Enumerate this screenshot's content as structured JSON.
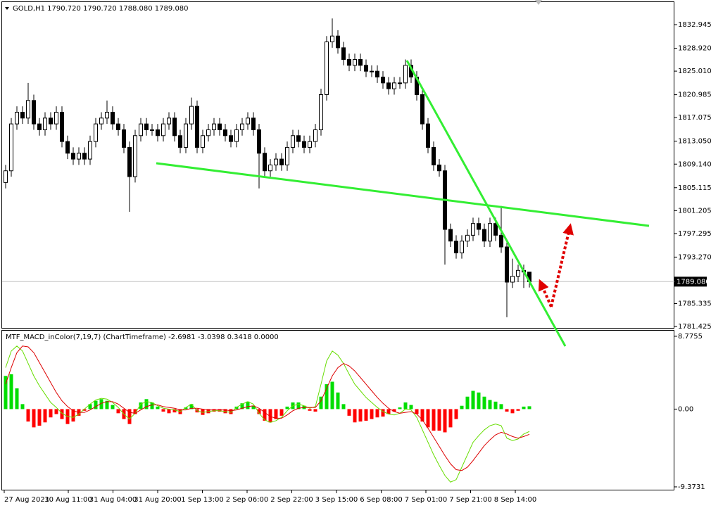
{
  "chart_data": [
    {
      "type": "candlestick",
      "title": "GOLD,H1  1790.720 1790.720 1788.080 1789.080",
      "categories": [
        "27 Aug 2021",
        "30 Aug 11:00",
        "31 Aug 04:00",
        "31 Aug 20:00",
        "1 Sep 13:00",
        "2 Sep 06:00",
        "2 Sep 22:00",
        "3 Sep 15:00",
        "6 Sep 08:00",
        "7 Sep 01:00",
        "7 Sep 21:00",
        "8 Sep 14:00"
      ],
      "open": [
        1806,
        1808,
        1816,
        1818,
        1817,
        1820,
        1816,
        1815,
        1817,
        1816,
        1818,
        1813,
        1811,
        1810,
        1811,
        1810,
        1813,
        1816,
        1817,
        1818,
        1816,
        1815,
        1812,
        1807,
        1814,
        1816,
        1815,
        1815,
        1814,
        1816,
        1817,
        1814,
        1812,
        1816,
        1819,
        1812,
        1814,
        1815,
        1816,
        1815,
        1814,
        1813,
        1815,
        1816,
        1817,
        1815,
        1811,
        1808,
        1809,
        1810,
        1809,
        1812,
        1814,
        1813,
        1812,
        1813,
        1815,
        1821,
        1830,
        1831,
        1829,
        1827,
        1826,
        1827,
        1826,
        1825,
        1825,
        1824,
        1823,
        1822,
        1823,
        1823,
        1826,
        1824,
        1821,
        1816,
        1812,
        1809,
        1808,
        1798,
        1796,
        1794,
        1796,
        1797,
        1799,
        1798,
        1796,
        1799,
        1797,
        1795,
        1789,
        1790,
        1791,
        1790.72
      ],
      "high": [
        1809,
        1817,
        1819,
        1819,
        1823,
        1821,
        1817,
        1818,
        1818,
        1819,
        1819,
        1814,
        1812,
        1812,
        1812,
        1814,
        1817,
        1818,
        1820,
        1819,
        1817,
        1816,
        1813,
        1815,
        1817,
        1817,
        1816,
        1816,
        1817,
        1818,
        1818,
        1815,
        1817,
        1820.5,
        1820,
        1815,
        1816,
        1817,
        1817,
        1816,
        1815,
        1816,
        1817,
        1818,
        1818,
        1816,
        1812,
        1810,
        1811,
        1811,
        1813,
        1815,
        1815,
        1814,
        1814,
        1816,
        1822,
        1831,
        1834,
        1832,
        1830,
        1828,
        1828,
        1828,
        1827,
        1826,
        1826,
        1825,
        1824,
        1824,
        1824,
        1827,
        1827,
        1825,
        1822,
        1817,
        1813,
        1810,
        1809,
        1799,
        1797,
        1797,
        1798,
        1800,
        1800,
        1799,
        1800,
        1800,
        1802,
        1796,
        1793,
        1792,
        1792,
        1790.72
      ],
      "low": [
        1805,
        1807,
        1815,
        1816,
        1816,
        1815,
        1814,
        1814,
        1815,
        1815,
        1812,
        1810,
        1809,
        1809,
        1809,
        1809,
        1812,
        1815,
        1816,
        1815,
        1814,
        1811,
        1801,
        1806,
        1813,
        1814,
        1814,
        1813,
        1813,
        1815,
        1813,
        1811,
        1811,
        1815,
        1811,
        1811,
        1813,
        1814,
        1814,
        1813,
        1812,
        1812,
        1814,
        1815,
        1814,
        1805,
        1807,
        1807,
        1808,
        1808,
        1808,
        1811,
        1812,
        1811,
        1811,
        1812,
        1814,
        1820,
        1829,
        1828,
        1826,
        1825,
        1825,
        1825,
        1824,
        1824,
        1823,
        1822,
        1821,
        1821,
        1822,
        1822,
        1823,
        1820,
        1815,
        1811,
        1808,
        1807,
        1792,
        1795,
        1793,
        1793,
        1795,
        1796,
        1797,
        1795,
        1795,
        1796,
        1794,
        1783,
        1788,
        1789,
        1788,
        1788.08
      ],
      "close": [
        1808,
        1816,
        1818,
        1817,
        1820,
        1816,
        1815,
        1817,
        1816,
        1818,
        1813,
        1811,
        1810,
        1811,
        1810,
        1813,
        1816,
        1817,
        1818,
        1816,
        1815,
        1812,
        1807,
        1814,
        1816,
        1815,
        1815,
        1814,
        1816,
        1817,
        1814,
        1812,
        1816,
        1819,
        1812,
        1814,
        1815,
        1816,
        1815,
        1814,
        1813,
        1815,
        1816,
        1817,
        1815,
        1811,
        1808,
        1809,
        1810,
        1809,
        1812,
        1814,
        1813,
        1812,
        1813,
        1815,
        1821,
        1830,
        1831,
        1829,
        1827,
        1826,
        1827,
        1826,
        1825,
        1825,
        1824,
        1823,
        1822,
        1823,
        1823,
        1826,
        1824,
        1821,
        1816,
        1812,
        1809,
        1808,
        1798,
        1796,
        1794,
        1796,
        1797,
        1799,
        1798,
        1796,
        1799,
        1797,
        1795,
        1789,
        1790,
        1791,
        1790.72,
        1789.08
      ],
      "up_color": "#ffffff",
      "down_color": "#000000",
      "ylim": [
        1781.07,
        1837.15
      ],
      "yticks": [
        1832.945,
        {
          "value": 1828.92,
          "label": "1828.920"
        },
        {
          "value": 1825.01,
          "label": "1825.010"
        },
        1820.985,
        1817.075,
        {
          "value": 1813.05,
          "label": "1813.050"
        },
        {
          "value": 1809.14,
          "label": "1809.140"
        },
        1805.115,
        1801.205,
        1797.295,
        {
          "value": 1793.27,
          "label": "1793.270"
        },
        1785.335,
        1781.425
      ],
      "current_price": {
        "value": 1789.08,
        "label": "1789.080"
      }
    },
    {
      "type": "macd",
      "title": "MTF_MACD_inColor(7,19,7) (ChartTimeframe) -2.6981 -3.0398 0.3418 0.0000",
      "histogram": [
        4.0,
        4.2,
        2.5,
        0.6,
        -1.5,
        -2.2,
        -2.0,
        -1.6,
        -1.0,
        -0.6,
        -1.2,
        -1.8,
        -1.5,
        -0.8,
        -0.2,
        0.6,
        1.0,
        1.2,
        1.0,
        0.5,
        -0.5,
        -1.2,
        -1.8,
        -0.6,
        0.8,
        1.2,
        0.8,
        0.3,
        -0.3,
        -0.5,
        -0.4,
        -0.6,
        0.2,
        0.6,
        -0.4,
        -0.7,
        -0.5,
        -0.3,
        -0.3,
        -0.5,
        -0.6,
        0.3,
        0.7,
        0.9,
        0.4,
        -0.6,
        -1.4,
        -1.6,
        -1.2,
        -0.8,
        0.3,
        0.8,
        0.8,
        0.4,
        -0.2,
        -0.3,
        1.5,
        3.0,
        3.3,
        2.0,
        0.6,
        -0.8,
        -1.6,
        -1.5,
        -1.4,
        -1.2,
        -1.0,
        -0.9,
        -0.6,
        -0.3,
        0.2,
        0.8,
        0.5,
        -0.6,
        -1.5,
        -2.2,
        -2.6,
        -2.6,
        -2.8,
        -2.2,
        -1.2,
        0.4,
        1.5,
        2.2,
        2.0,
        1.5,
        1.1,
        0.9,
        0.6,
        -0.3,
        -0.5,
        -0.2,
        0.3,
        0.3418
      ],
      "positive_color": "#00dd00",
      "negative_color": "#ff0000",
      "macd": {
        "color": "#66dd00",
        "values": [
          5.0,
          7.0,
          7.6,
          7.0,
          5.5,
          4.0,
          2.8,
          1.8,
          0.8,
          0.2,
          -0.5,
          -0.9,
          -1.0,
          -0.6,
          0.0,
          0.6,
          1.1,
          1.3,
          1.2,
          0.8,
          0.2,
          -0.6,
          -1.2,
          -0.5,
          0.6,
          0.9,
          0.8,
          0.4,
          0.1,
          0.0,
          -0.1,
          -0.3,
          0.2,
          0.6,
          -0.2,
          -0.4,
          -0.3,
          -0.2,
          -0.2,
          -0.3,
          -0.4,
          0.2,
          0.6,
          0.9,
          0.6,
          -0.5,
          -1.3,
          -1.6,
          -1.4,
          -1.0,
          -0.2,
          0.4,
          0.6,
          0.4,
          0.1,
          0.3,
          3.0,
          5.8,
          7.0,
          6.5,
          5.5,
          4.2,
          3.0,
          2.2,
          1.4,
          0.8,
          0.2,
          -0.3,
          -0.6,
          -0.7,
          -0.5,
          0.0,
          -0.1,
          -1.0,
          -2.5,
          -4.0,
          -5.5,
          -6.8,
          -8.0,
          -8.8,
          -8.5,
          -7.0,
          -5.5,
          -4.0,
          -3.2,
          -2.5,
          -2.0,
          -1.8,
          -2.0,
          -3.5,
          -3.8,
          -3.6,
          -3.0,
          -2.6981
        ]
      },
      "signal": {
        "color": "#dd0000",
        "values": [
          3.0,
          5.0,
          6.8,
          7.6,
          7.5,
          6.8,
          5.6,
          4.4,
          3.2,
          2.0,
          1.0,
          0.3,
          -0.2,
          -0.4,
          -0.4,
          -0.1,
          0.3,
          0.7,
          0.9,
          0.9,
          0.6,
          0.1,
          -0.4,
          -0.5,
          -0.1,
          0.3,
          0.5,
          0.5,
          0.3,
          0.2,
          0.1,
          -0.1,
          -0.1,
          0.1,
          0.1,
          0.0,
          -0.1,
          -0.1,
          -0.1,
          -0.1,
          -0.2,
          -0.1,
          0.1,
          0.3,
          0.4,
          0.1,
          -0.4,
          -0.9,
          -1.1,
          -1.1,
          -0.7,
          -0.2,
          0.1,
          0.2,
          0.2,
          0.2,
          1.0,
          2.5,
          4.0,
          5.0,
          5.5,
          5.2,
          4.6,
          3.8,
          3.0,
          2.2,
          1.4,
          0.7,
          0.1,
          -0.3,
          -0.5,
          -0.4,
          -0.3,
          -0.6,
          -1.3,
          -2.3,
          -3.4,
          -4.5,
          -5.6,
          -6.6,
          -7.3,
          -7.4,
          -7.0,
          -6.2,
          -5.3,
          -4.4,
          -3.7,
          -3.1,
          -2.8,
          -3.0,
          -3.3,
          -3.5,
          -3.3,
          -3.0398
        ]
      },
      "ylim": [
        -9.8,
        9.45
      ],
      "yticks": [
        8.7755,
        {
          "value": 0,
          "label": "0.00"
        },
        -9.3731
      ]
    }
  ]
}
